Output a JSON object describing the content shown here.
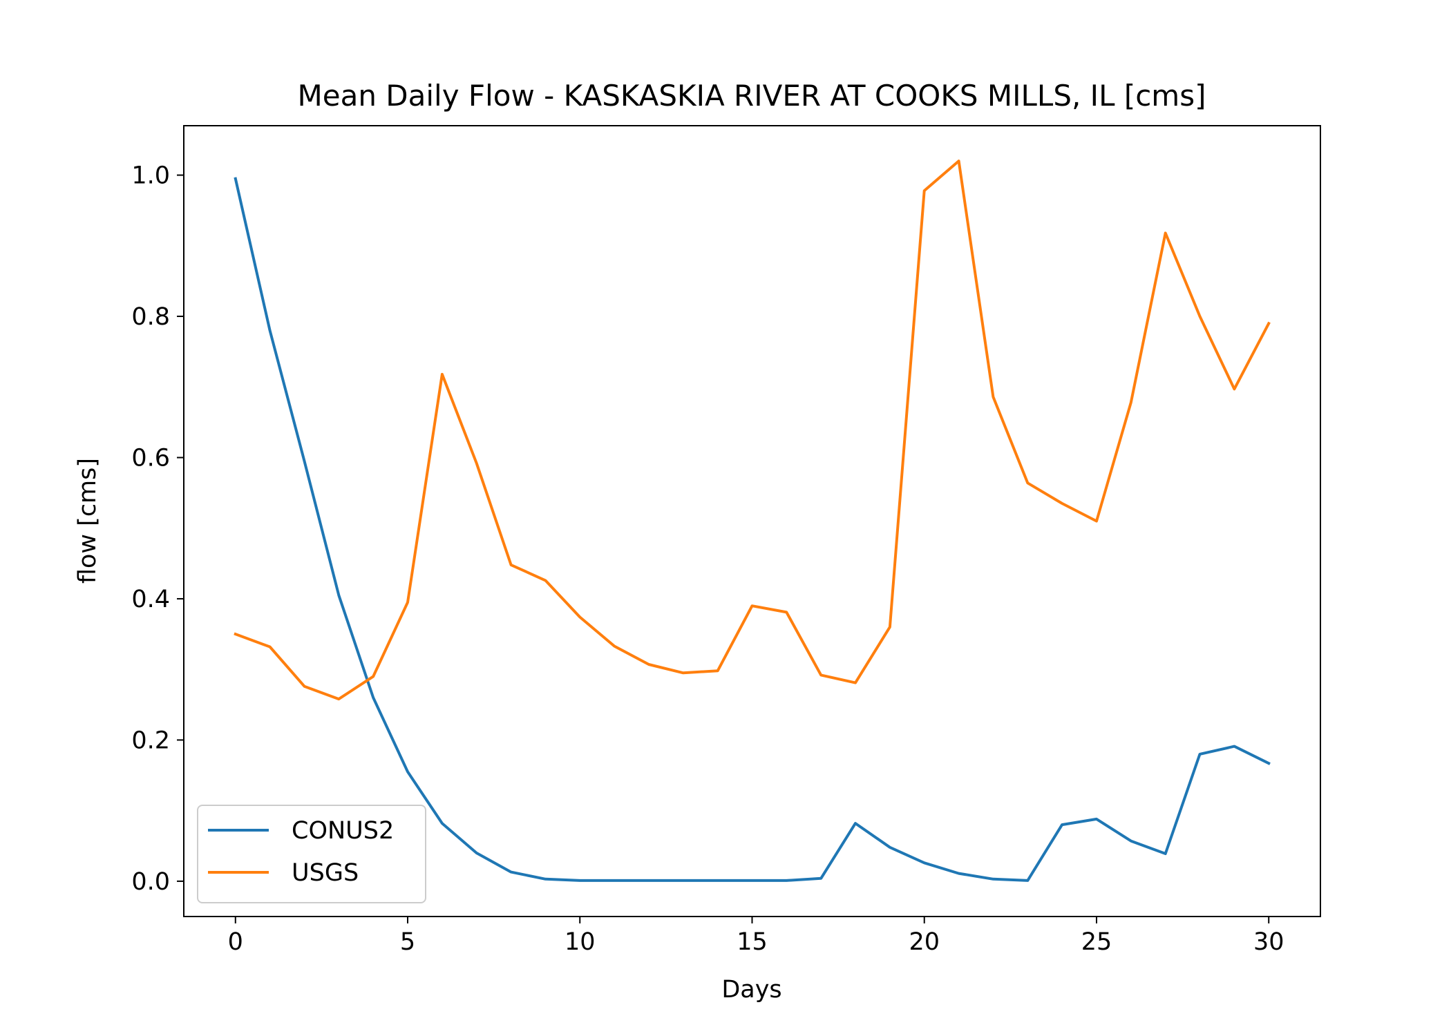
{
  "chart_data": {
    "type": "line",
    "title": "Mean Daily Flow - KASKASKIA RIVER AT COOKS MILLS, IL [cms]",
    "xlabel": "Days",
    "ylabel": "flow [cms]",
    "xlim": [
      -1.5,
      31.5
    ],
    "ylim": [
      -0.05,
      1.07
    ],
    "xticks": [
      0,
      5,
      10,
      15,
      20,
      25,
      30
    ],
    "yticks": [
      0.0,
      0.2,
      0.4,
      0.6,
      0.8,
      1.0
    ],
    "xtick_labels": [
      "0",
      "5",
      "10",
      "15",
      "20",
      "25",
      "30"
    ],
    "ytick_labels": [
      "0.0",
      "0.2",
      "0.4",
      "0.6",
      "0.8",
      "1.0"
    ],
    "grid": false,
    "legend_position": "lower-left",
    "x": [
      0,
      1,
      2,
      3,
      4,
      5,
      6,
      7,
      8,
      9,
      10,
      11,
      12,
      13,
      14,
      15,
      16,
      17,
      18,
      19,
      20,
      21,
      22,
      23,
      24,
      25,
      26,
      27,
      28,
      29,
      30
    ],
    "series": [
      {
        "name": "CONUS2",
        "color": "#1f77b4",
        "values": [
          0.995,
          0.78,
          0.595,
          0.405,
          0.26,
          0.155,
          0.082,
          0.04,
          0.013,
          0.003,
          0.001,
          0.001,
          0.001,
          0.001,
          0.001,
          0.001,
          0.001,
          0.004,
          0.082,
          0.048,
          0.026,
          0.011,
          0.003,
          0.001,
          0.08,
          0.088,
          0.057,
          0.039,
          0.18,
          0.191,
          0.167
        ]
      },
      {
        "name": "USGS",
        "color": "#ff7f0e",
        "values": [
          0.35,
          0.332,
          0.276,
          0.258,
          0.29,
          0.395,
          0.718,
          0.592,
          0.448,
          0.426,
          0.374,
          0.333,
          0.307,
          0.295,
          0.298,
          0.39,
          0.381,
          0.292,
          0.281,
          0.36,
          0.978,
          1.02,
          0.686,
          0.564,
          0.535,
          0.51,
          0.678,
          0.918,
          0.8,
          0.697,
          0.79
        ]
      }
    ]
  }
}
